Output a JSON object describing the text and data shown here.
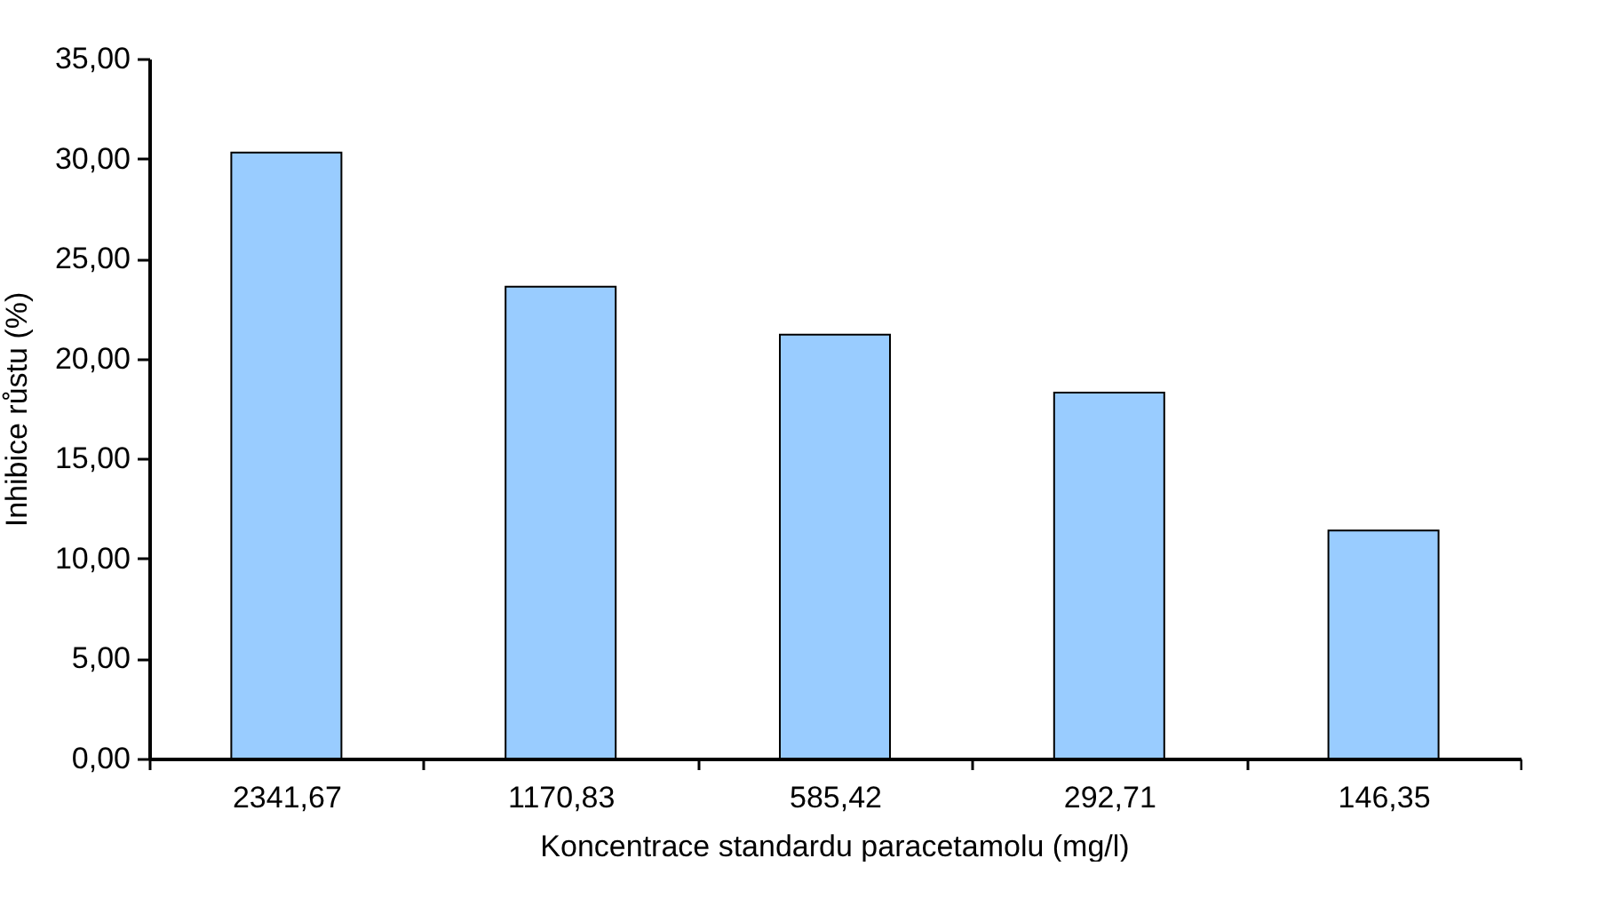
{
  "chart_data": {
    "type": "bar",
    "xlabel": "Koncentrace standardu paracetamolu (mg/l)",
    "ylabel": "Inhibice růstu (%)",
    "categories": [
      "2341,67",
      "1170,83",
      "585,42",
      "292,71",
      "146,35"
    ],
    "values": [
      30.3,
      23.6,
      21.2,
      18.3,
      11.4
    ],
    "color": "#99ccff",
    "ylim": [
      0,
      35
    ],
    "yticks": [
      {
        "value": 0,
        "label": "0,00"
      },
      {
        "value": 5,
        "label": "5,00"
      },
      {
        "value": 10,
        "label": "10,00"
      },
      {
        "value": 15,
        "label": "15,00"
      },
      {
        "value": 20,
        "label": "20,00"
      },
      {
        "value": 25,
        "label": "25,00"
      },
      {
        "value": 30,
        "label": "30,00"
      },
      {
        "value": 35,
        "label": "35,00"
      }
    ],
    "grid": false
  }
}
